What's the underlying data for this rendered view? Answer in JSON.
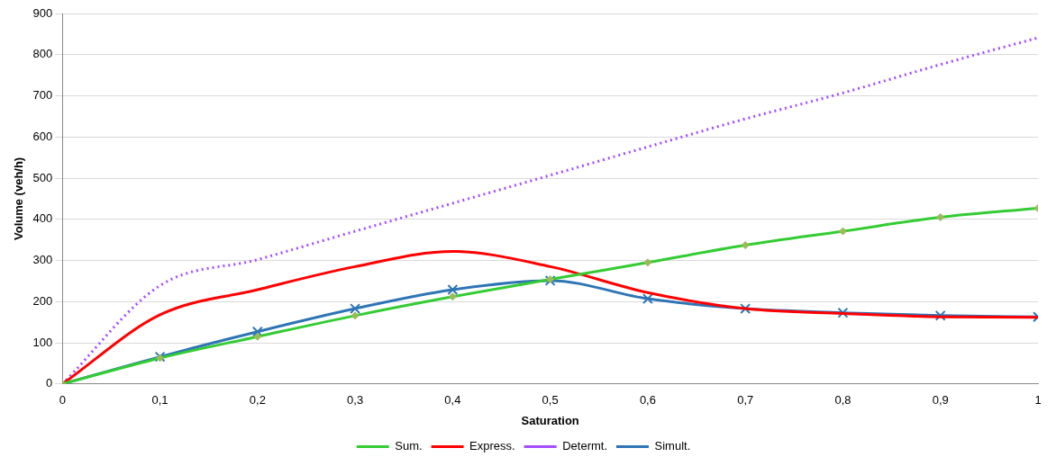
{
  "chart_data": {
    "type": "line",
    "xlabel": "Saturation",
    "ylabel": "Volume (veh/h)",
    "x": [
      0,
      0.1,
      0.2,
      0.3,
      0.4,
      0.5,
      0.6,
      0.7,
      0.8,
      0.9,
      1
    ],
    "xlim": [
      0,
      1
    ],
    "xticks": [
      0,
      {
        "value": 0.1,
        "label": "0,1"
      },
      {
        "value": 0.2,
        "label": "0,2"
      },
      {
        "value": 0.3,
        "label": "0,3"
      },
      {
        "value": 0.4,
        "label": "0,4"
      },
      {
        "value": 0.5,
        "label": "0,5"
      },
      {
        "value": 0.6,
        "label": "0,6"
      },
      {
        "value": 0.7,
        "label": "0,7"
      },
      {
        "value": 0.8,
        "label": "0,8"
      },
      {
        "value": 0.9,
        "label": "0,9"
      },
      1
    ],
    "ylim": [
      0,
      900
    ],
    "yticks": [
      0,
      100,
      200,
      300,
      400,
      500,
      600,
      700,
      800,
      900
    ],
    "grid": "y",
    "legend": "bottom",
    "series": [
      {
        "name": "Sum.",
        "color": "#33cc33",
        "marker": "diamond",
        "line_style": "solid",
        "values": [
          0,
          63,
          115,
          166,
          212,
          254,
          295,
          337,
          371,
          405,
          427
        ]
      },
      {
        "name": "Express.",
        "color": "#ff0000",
        "marker": "none",
        "line_style": "solid",
        "values": [
          0,
          168,
          229,
          285,
          322,
          285,
          222,
          183,
          171,
          163,
          162
        ]
      },
      {
        "name": "Determt.",
        "color": "#a64dff",
        "marker": "none",
        "line_style": "dotted",
        "values": [
          0,
          239,
          302,
          371,
          439,
          507,
          576,
          644,
          707,
          776,
          841
        ]
      },
      {
        "name": "Simult.",
        "color": "#2e75b6",
        "marker": "cross",
        "line_style": "solid",
        "values": [
          0,
          66,
          127,
          183,
          229,
          251,
          207,
          183,
          173,
          166,
          163
        ]
      }
    ]
  }
}
